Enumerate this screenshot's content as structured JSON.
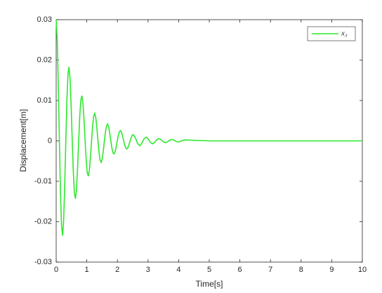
{
  "chart_data": {
    "type": "line",
    "xlabel": "Time[s]",
    "ylabel": "Displacement[m]",
    "xlim": [
      0,
      10
    ],
    "xticks": [
      0,
      1,
      2,
      3,
      4,
      5,
      6,
      7,
      8,
      9,
      10
    ],
    "ylim": [
      -0.03,
      0.03
    ],
    "yticks": [
      -0.03,
      -0.02,
      -0.01,
      0,
      0.01,
      0.02,
      0.03
    ],
    "legend": "top-right",
    "x": [
      0,
      0.035,
      0.07,
      0.105,
      0.14,
      0.175,
      0.21,
      0.245,
      0.28,
      0.315,
      0.35,
      0.385,
      0.42,
      0.455,
      0.49,
      0.525,
      0.56,
      0.595,
      0.63,
      0.665,
      0.7,
      0.735,
      0.77,
      0.805,
      0.84,
      0.875,
      0.91,
      0.945,
      0.98,
      1.015,
      1.05,
      1.085,
      1.12,
      1.155,
      1.19,
      1.225,
      1.26,
      1.295,
      1.33,
      1.365,
      1.4,
      1.435,
      1.47,
      1.505,
      1.54,
      1.575,
      1.61,
      1.645,
      1.68,
      1.715,
      1.75,
      1.785,
      1.82,
      1.855,
      1.89,
      1.925,
      1.96,
      1.995,
      2.03,
      2.065,
      2.1,
      2.135,
      2.17,
      2.205,
      2.24,
      2.275,
      2.31,
      2.345,
      2.38,
      2.415,
      2.45,
      2.485,
      2.52,
      2.59,
      2.66,
      2.73,
      2.8,
      2.87,
      2.94,
      3.01,
      3.08,
      3.15,
      3.22,
      3.29,
      3.36,
      3.43,
      3.5,
      3.57,
      3.64,
      3.71,
      3.78,
      3.85,
      3.92,
      3.99,
      4.06,
      4.13,
      4.2,
      5,
      10
    ],
    "series": [
      {
        "name": "x₃",
        "color": "#2ee82e",
        "values": [
          0.03,
          0.02493,
          0.01382,
          0,
          -0.01272,
          -0.02115,
          -0.02344,
          -0.01948,
          -0.01079,
          0,
          0.00994,
          0.01652,
          0.01831,
          0.01522,
          0.00843,
          0,
          -0.00777,
          -0.01291,
          -0.01431,
          -0.01189,
          -0.00659,
          0,
          0.00607,
          0.01009,
          0.01118,
          0.00929,
          0.00515,
          0,
          -0.00474,
          -0.00788,
          -0.00873,
          -0.00726,
          -0.00402,
          0,
          0.0037,
          0.00616,
          0.00682,
          0.00567,
          0.00314,
          0,
          -0.00289,
          -0.00481,
          -0.00533,
          -0.00443,
          -0.00246,
          0,
          0.00226,
          0.00376,
          0.00417,
          0.00346,
          0.00192,
          0,
          -0.00177,
          -0.00294,
          -0.00325,
          -0.0027,
          -0.0015,
          0,
          0.00138,
          0.00229,
          0.00254,
          0.00211,
          0.00117,
          0,
          -0.00108,
          -0.00179,
          -0.00199,
          -0.00165,
          -0.00091,
          0,
          0.00084,
          0.0014,
          0.00155,
          0.00071,
          -0.00066,
          -0.00121,
          -0.00056,
          0.00051,
          0.00095,
          0.00044,
          -0.0004,
          -0.00074,
          -0.00034,
          0.00031,
          0.00058,
          0.00027,
          -0.00025,
          -0.00045,
          -0.00021,
          0.00019,
          0.00035,
          0.00016,
          -0.00015,
          -0.00028,
          -0.00013,
          0.00012,
          0.00022,
          0,
          0
        ]
      }
    ]
  }
}
